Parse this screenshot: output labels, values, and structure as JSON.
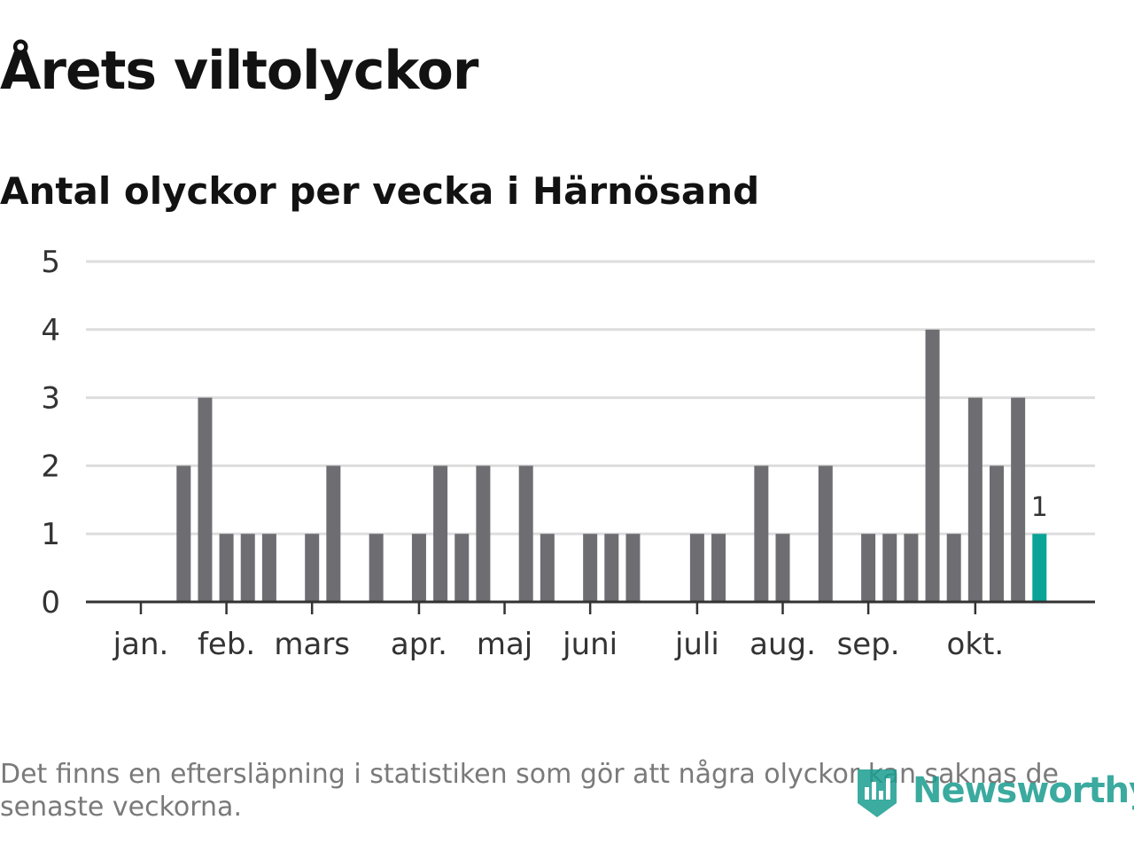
{
  "title": "Årets viltolyckor",
  "subtitle": "Antal olyckor per vecka i Härnösand",
  "footnote": "Det finns en eftersläpning i statistiken som gör att några olyckor kan saknas de senaste veckorna.",
  "brand": {
    "name": "Newsworthy",
    "icon": "newsworthy-logo-icon",
    "color": "#1a9c8f"
  },
  "chart_data": {
    "type": "bar",
    "title": "Årets viltolyckor",
    "subtitle": "Antal olyckor per vecka i Härnösand",
    "xlabel": "",
    "ylabel": "",
    "ylim": [
      0,
      5
    ],
    "yticks": [
      0,
      1,
      2,
      3,
      4,
      5
    ],
    "grid": true,
    "legend": "none",
    "bar_color": "#6e6d72",
    "highlight_color": "#0aa397",
    "weeks": [
      1,
      2,
      3,
      4,
      5,
      6,
      7,
      8,
      9,
      10,
      11,
      12,
      13,
      14,
      15,
      16,
      17,
      18,
      19,
      20,
      21,
      22,
      23,
      24,
      25,
      26,
      27,
      28,
      29,
      30,
      31,
      32,
      33,
      34,
      35,
      36,
      37,
      38,
      39,
      40,
      41,
      42,
      43
    ],
    "values": [
      0,
      0,
      2,
      3,
      1,
      1,
      1,
      0,
      1,
      2,
      0,
      1,
      0,
      1,
      2,
      1,
      2,
      0,
      2,
      1,
      0,
      1,
      1,
      1,
      0,
      0,
      1,
      1,
      0,
      2,
      1,
      0,
      2,
      0,
      1,
      1,
      1,
      4,
      1,
      3,
      2,
      3,
      1
    ],
    "highlight_index": 42,
    "data_labels": [
      {
        "index": 42,
        "text": "1"
      }
    ],
    "month_ticks": [
      {
        "label": "jan.",
        "week": 1
      },
      {
        "label": "feb.",
        "week": 5
      },
      {
        "label": "mars",
        "week": 9
      },
      {
        "label": "apr.",
        "week": 14
      },
      {
        "label": "maj",
        "week": 18
      },
      {
        "label": "juni",
        "week": 22
      },
      {
        "label": "juli",
        "week": 27
      },
      {
        "label": "aug.",
        "week": 31
      },
      {
        "label": "sep.",
        "week": 35
      },
      {
        "label": "okt.",
        "week": 40
      }
    ]
  }
}
